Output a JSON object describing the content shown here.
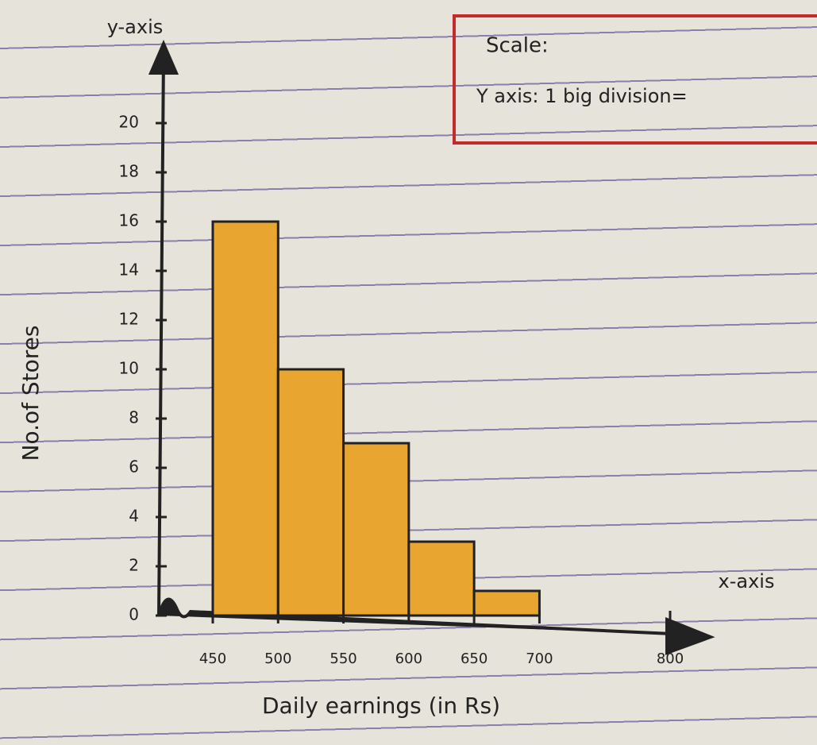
{
  "chart_data": {
    "type": "histogram",
    "y_axis_title": "y-axis",
    "x_axis_title": "x-axis",
    "ylabel": "No.of Stores",
    "xlabel": "Daily earnings (in Rs)",
    "scale_note": {
      "title": "Scale:",
      "text": "Y axis: 1 big division="
    },
    "bins": [
      450,
      500,
      550,
      600,
      650,
      700
    ],
    "counts": [
      16,
      10,
      7,
      3,
      1
    ],
    "color": "#e8a530",
    "xlim": [
      450,
      800
    ],
    "xticks": [
      450,
      500,
      550,
      600,
      650,
      700,
      800
    ],
    "ylim": [
      0,
      20
    ],
    "yticks": [
      0,
      2,
      4,
      6,
      8,
      10,
      12,
      14,
      16,
      18,
      20
    ]
  }
}
